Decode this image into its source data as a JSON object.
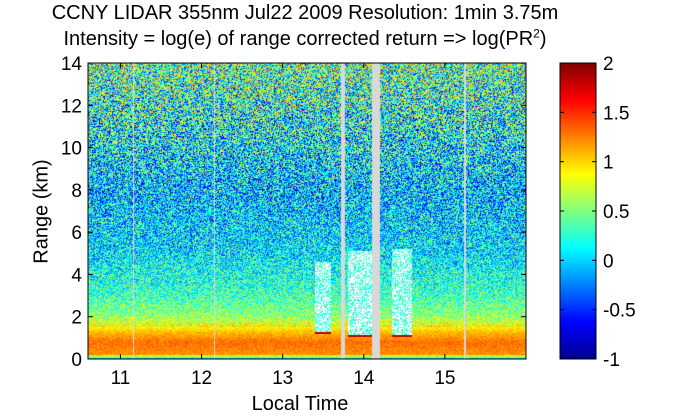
{
  "colors": {
    "colormap": [
      "#00008f",
      "#0000ff",
      "#0080ff",
      "#00ffff",
      "#80ff80",
      "#ffff00",
      "#ff8000",
      "#ff0000",
      "#800000"
    ],
    "gap": "#d8d8d8"
  },
  "chart_data": {
    "type": "heatmap",
    "title": "CCNY LIDAR 355nm Jul22 2009 Resolution: 1min 3.75m",
    "subtitle_prefix": "Intensity = log(e) of range corrected return => log(PR",
    "subtitle_sup": "2",
    "subtitle_suffix": ")",
    "xlabel": "Local Time",
    "ylabel": "Range (km)",
    "xlim": [
      10.6,
      16.0
    ],
    "ylim": [
      0,
      14
    ],
    "xticks": [
      11,
      12,
      13,
      14,
      15
    ],
    "xtick_labels": [
      "11",
      "12",
      "13",
      "14",
      "15"
    ],
    "yticks": [
      0,
      2,
      4,
      6,
      8,
      10,
      12,
      14
    ],
    "ytick_labels": [
      "0",
      "2",
      "4",
      "6",
      "8",
      "10",
      "12",
      "14"
    ],
    "colorbar": {
      "range": [
        -1,
        2
      ],
      "ticks": [
        -1,
        -0.5,
        0,
        0.5,
        1,
        1.5,
        2
      ],
      "tick_labels": [
        "-1",
        "-0.5",
        "0",
        "0.5",
        "1",
        "1.5",
        "2"
      ]
    },
    "intensity_profile": [
      {
        "range_km": 0.0,
        "value": -0.1
      },
      {
        "range_km": 0.2,
        "value": 1.2
      },
      {
        "range_km": 0.8,
        "value": 1.3
      },
      {
        "range_km": 1.3,
        "value": 1.05
      },
      {
        "range_km": 2.0,
        "value": 0.55
      },
      {
        "range_km": 3.0,
        "value": 0.3
      },
      {
        "range_km": 5.0,
        "value": 0.05
      },
      {
        "range_km": 8.0,
        "value": -0.05
      },
      {
        "range_km": 11.0,
        "value": 0.15
      },
      {
        "range_km": 14.0,
        "value": 0.4
      }
    ],
    "data_gaps": [
      {
        "start": 11.15,
        "end": 11.17
      },
      {
        "start": 12.15,
        "end": 12.17
      },
      {
        "start": 13.72,
        "end": 13.77
      },
      {
        "start": 14.1,
        "end": 14.2
      },
      {
        "start": 15.24,
        "end": 15.26
      }
    ],
    "cloud_events": [
      {
        "start": 13.4,
        "end": 13.6,
        "base_km": 1.3,
        "top_km": 4.6
      },
      {
        "start": 13.8,
        "end": 14.1,
        "base_km": 1.15,
        "top_km": 5.1
      },
      {
        "start": 14.35,
        "end": 14.6,
        "base_km": 1.15,
        "top_km": 5.2
      }
    ],
    "grid": false
  }
}
